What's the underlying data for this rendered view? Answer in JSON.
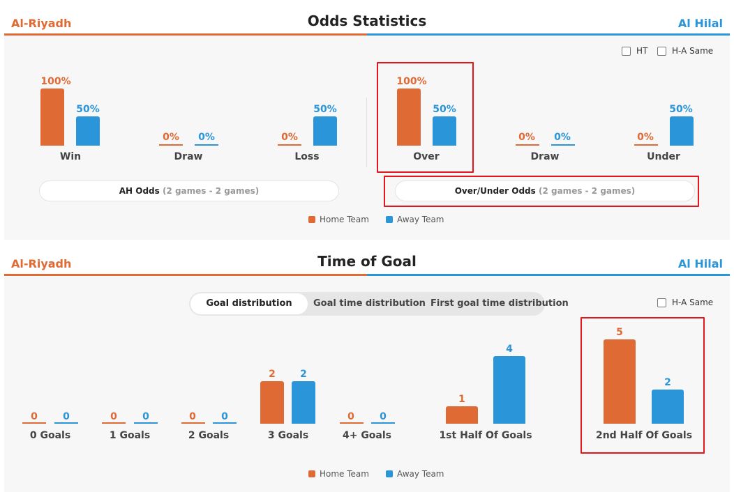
{
  "odds": {
    "home_team": "Al-Riyadh",
    "away_team": "Al Hilal",
    "title": "Odds Statistics",
    "ht_label": "HT",
    "ha_same_label": "H-A Same",
    "ah": {
      "categories": [
        {
          "label": "Win",
          "home": "100%",
          "away": "50%"
        },
        {
          "label": "Draw",
          "home": "0%",
          "away": "0%"
        },
        {
          "label": "Loss",
          "home": "0%",
          "away": "50%"
        }
      ],
      "button_label": "AH Odds",
      "button_sub": "(2 games - 2 games)"
    },
    "ou": {
      "categories": [
        {
          "label": "Over",
          "home": "100%",
          "away": "50%"
        },
        {
          "label": "Draw",
          "home": "0%",
          "away": "0%"
        },
        {
          "label": "Under",
          "home": "0%",
          "away": "50%"
        }
      ],
      "button_label": "Over/Under Odds",
      "button_sub": "(2 games - 2 games)"
    },
    "legend": {
      "home": "Home Team",
      "away": "Away Team"
    }
  },
  "goals": {
    "home_team": "Al-Riyadh",
    "away_team": "Al Hilal",
    "title": "Time of Goal",
    "tabs": [
      "Goal distribution",
      "Goal time distribution",
      "First goal time distribution"
    ],
    "active_tab": 0,
    "ha_same_label": "H-A Same",
    "categories": [
      {
        "label": "0 Goals",
        "home": "0",
        "away": "0"
      },
      {
        "label": "1 Goals",
        "home": "0",
        "away": "0"
      },
      {
        "label": "2 Goals",
        "home": "0",
        "away": "0"
      },
      {
        "label": "3 Goals",
        "home": "2",
        "away": "2"
      },
      {
        "label": "4+ Goals",
        "home": "0",
        "away": "0"
      },
      {
        "label": "1st Half Of Goals",
        "home": "1",
        "away": "4"
      },
      {
        "label": "2nd Half Of Goals",
        "home": "5",
        "away": "2"
      }
    ],
    "legend": {
      "home": "Home Team",
      "away": "Away Team"
    }
  },
  "colors": {
    "home": "#e06a33",
    "away": "#2a95d8",
    "highlight": "#e5161b"
  }
}
